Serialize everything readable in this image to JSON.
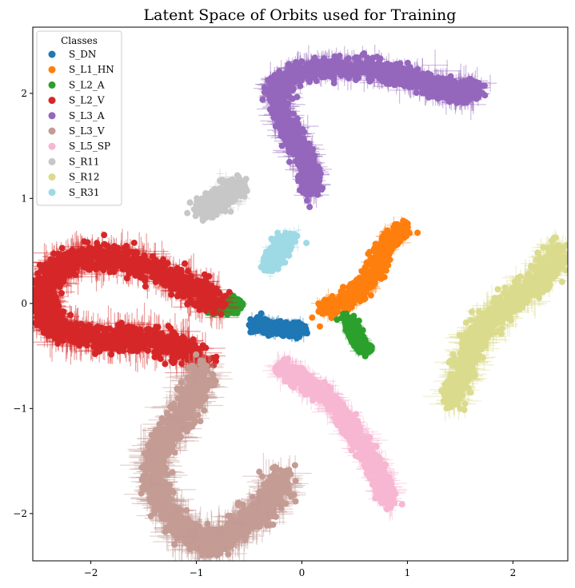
{
  "chart_data": {
    "type": "scatter",
    "title": "Latent Space of Orbits used for Training",
    "xlabel": "",
    "ylabel": "",
    "xlim": [
      -2.55,
      2.52
    ],
    "ylim": [
      -2.45,
      2.63
    ],
    "x_ticks": [
      -2,
      -1,
      0,
      1,
      2
    ],
    "y_ticks": [
      -2,
      -1,
      0,
      1,
      2
    ],
    "tick_labels_x": [
      "−2",
      "−1",
      "0",
      "1",
      "2"
    ],
    "tick_labels_y": [
      "−2",
      "−1",
      "0",
      "1",
      "2"
    ],
    "grid": false,
    "legend_title": "Classes",
    "legend_position": "top-left",
    "series": [
      {
        "name": "S_DN",
        "color": "#1f77b4",
        "spread": 0.03,
        "err": 0.05,
        "path": [
          [
            -0.45,
            -0.2
          ],
          [
            -0.3,
            -0.22
          ],
          [
            -0.15,
            -0.25
          ],
          [
            0.0,
            -0.25
          ]
        ]
      },
      {
        "name": "S_L1_HN",
        "color": "#ff7f0e",
        "spread": 0.04,
        "err": 0.05,
        "path": [
          [
            0.2,
            -0.07
          ],
          [
            0.45,
            0.05
          ],
          [
            0.62,
            0.2
          ],
          [
            0.72,
            0.4
          ],
          [
            0.82,
            0.6
          ],
          [
            0.97,
            0.7
          ]
        ]
      },
      {
        "name": "S_L2_A",
        "color": "#2ca02c",
        "spread": 0.03,
        "err": 0.04,
        "path": [
          [
            -0.9,
            -0.02
          ],
          [
            -0.72,
            -0.04
          ],
          [
            -0.6,
            0.0
          ]
        ]
      },
      {
        "name": "S_L2_A",
        "color": "#2ca02c",
        "spread": 0.03,
        "err": 0.04,
        "path": [
          [
            0.42,
            -0.16
          ],
          [
            0.5,
            -0.28
          ],
          [
            0.55,
            -0.4
          ],
          [
            0.62,
            -0.42
          ]
        ]
      },
      {
        "name": "S_L2_V",
        "color": "#d62728",
        "spread": 0.06,
        "err": 0.14,
        "path": [
          [
            -0.8,
            0.0
          ],
          [
            -1.05,
            0.15
          ],
          [
            -1.35,
            0.3
          ],
          [
            -1.7,
            0.42
          ],
          [
            -2.05,
            0.45
          ],
          [
            -2.3,
            0.35
          ],
          [
            -2.45,
            0.15
          ],
          [
            -2.45,
            -0.08
          ],
          [
            -2.3,
            -0.25
          ],
          [
            -2.0,
            -0.33
          ],
          [
            -1.6,
            -0.33
          ],
          [
            -1.25,
            -0.38
          ],
          [
            -0.95,
            -0.55
          ]
        ]
      },
      {
        "name": "S_L3_A",
        "color": "#9467bd",
        "spread": 0.05,
        "err": 0.1,
        "path": [
          [
            0.07,
            1.05
          ],
          [
            0.05,
            1.35
          ],
          [
            -0.07,
            1.55
          ],
          [
            -0.2,
            1.8
          ],
          [
            -0.25,
            2.05
          ],
          [
            -0.05,
            2.2
          ],
          [
            0.3,
            2.25
          ],
          [
            0.7,
            2.22
          ],
          [
            1.0,
            2.15
          ],
          [
            1.3,
            2.05
          ],
          [
            1.5,
            2.0
          ],
          [
            1.65,
            2.05
          ]
        ]
      },
      {
        "name": "S_L3_V",
        "color": "#c49c94",
        "spread": 0.06,
        "err": 0.15,
        "path": [
          [
            -0.95,
            -0.65
          ],
          [
            -1.02,
            -0.85
          ],
          [
            -1.2,
            -1.15
          ],
          [
            -1.4,
            -1.45
          ],
          [
            -1.38,
            -1.8
          ],
          [
            -1.2,
            -2.1
          ],
          [
            -0.95,
            -2.28
          ],
          [
            -0.72,
            -2.25
          ],
          [
            -0.5,
            -2.05
          ],
          [
            -0.3,
            -1.9
          ],
          [
            -0.2,
            -1.65
          ]
        ]
      },
      {
        "name": "S_L5_SP",
        "color": "#f7b6d2",
        "spread": 0.04,
        "err": 0.1,
        "path": [
          [
            -0.2,
            -0.6
          ],
          [
            0.0,
            -0.72
          ],
          [
            0.25,
            -0.9
          ],
          [
            0.45,
            -1.15
          ],
          [
            0.6,
            -1.4
          ],
          [
            0.75,
            -1.65
          ],
          [
            0.82,
            -1.9
          ]
        ]
      },
      {
        "name": "S_R11",
        "color": "#c7c7c7",
        "spread": 0.05,
        "err": 0.05,
        "path": [
          [
            -0.95,
            0.9
          ],
          [
            -0.82,
            0.95
          ],
          [
            -0.7,
            1.05
          ],
          [
            -0.62,
            1.1
          ]
        ]
      },
      {
        "name": "S_R12",
        "color": "#dbdb8d",
        "spread": 0.06,
        "err": 0.12,
        "path": [
          [
            1.4,
            -0.95
          ],
          [
            1.55,
            -0.6
          ],
          [
            1.65,
            -0.3
          ],
          [
            1.85,
            -0.1
          ],
          [
            2.1,
            0.1
          ],
          [
            2.3,
            0.3
          ],
          [
            2.45,
            0.5
          ]
        ]
      },
      {
        "name": "S_R31",
        "color": "#9edae5",
        "spread": 0.04,
        "err": 0.03,
        "path": [
          [
            -0.3,
            0.35
          ],
          [
            -0.25,
            0.45
          ],
          [
            -0.2,
            0.55
          ],
          [
            -0.12,
            0.62
          ]
        ]
      }
    ],
    "legend_entries": [
      {
        "name": "S_DN",
        "color": "#1f77b4"
      },
      {
        "name": "S_L1_HN",
        "color": "#ff7f0e"
      },
      {
        "name": "S_L2_A",
        "color": "#2ca02c"
      },
      {
        "name": "S_L2_V",
        "color": "#d62728"
      },
      {
        "name": "S_L3_A",
        "color": "#9467bd"
      },
      {
        "name": "S_L3_V",
        "color": "#c49c94"
      },
      {
        "name": "S_L5_SP",
        "color": "#f7b6d2"
      },
      {
        "name": "S_R11",
        "color": "#c7c7c7"
      },
      {
        "name": "S_R12",
        "color": "#dbdb8d"
      },
      {
        "name": "S_R31",
        "color": "#9edae5"
      }
    ]
  }
}
